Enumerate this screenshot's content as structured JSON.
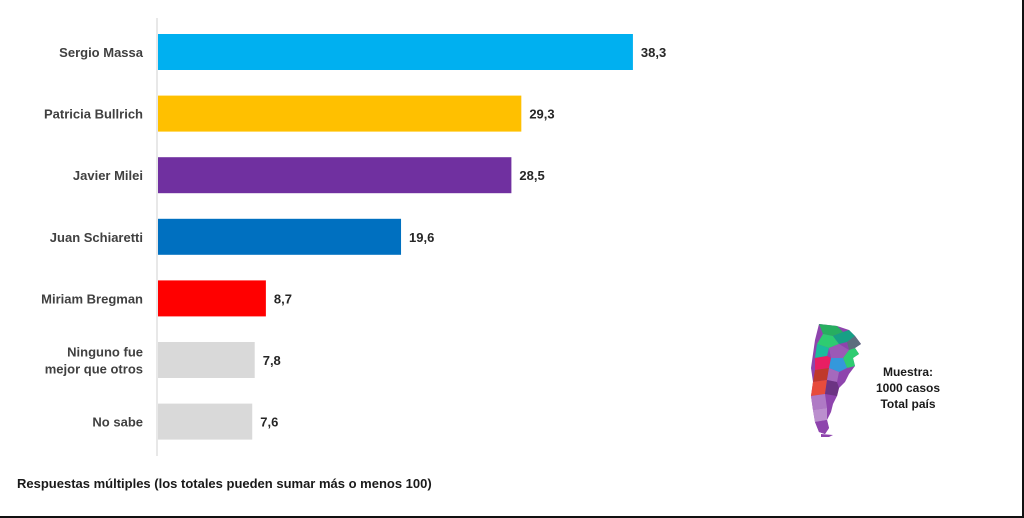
{
  "chart_data": {
    "type": "bar",
    "orientation": "horizontal",
    "categories": [
      "Sergio Massa",
      "Patricia Bullrich",
      "Javier Milei",
      "Juan Schiaretti",
      "Miriam Bregman",
      "Ninguno fue mejor que otros",
      "No sabe"
    ],
    "category_lines": [
      [
        "Sergio Massa"
      ],
      [
        "Patricia Bullrich"
      ],
      [
        "Javier Milei"
      ],
      [
        "Juan Schiaretti"
      ],
      [
        "Miriam Bregman"
      ],
      [
        "Ninguno fue",
        "mejor que otros"
      ],
      [
        "No sabe"
      ]
    ],
    "values": [
      38.3,
      29.3,
      28.5,
      19.6,
      8.7,
      7.8,
      7.6
    ],
    "value_labels": [
      "38,3",
      "29,3",
      "28,5",
      "19,6",
      "8,7",
      "7,8",
      "7,6"
    ],
    "colors": [
      "#00B0F0",
      "#FFC000",
      "#7030A0",
      "#0070C0",
      "#FF0000",
      "#D9D9D9",
      "#D9D9D9"
    ],
    "xlim": [
      0,
      50
    ],
    "grid": false,
    "legend": "none"
  },
  "footnote": "Respuestas múltiples (los totales pueden sumar más  o menos 100)",
  "sample": {
    "line1": "Muestra:",
    "line2": "1000 casos",
    "line3": "Total país"
  },
  "icons": {
    "map": "argentina-map-icon"
  }
}
